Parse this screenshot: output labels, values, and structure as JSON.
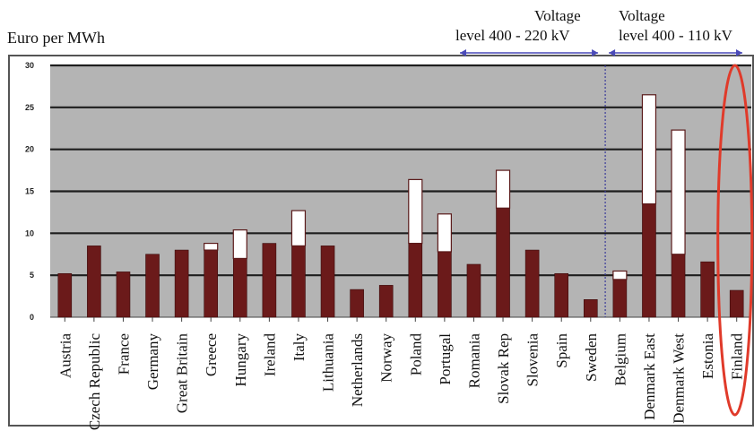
{
  "chart_data": {
    "type": "bar",
    "ylabel": "Euro per MWh",
    "ylim": [
      0,
      30
    ],
    "yticks": [
      "0",
      "5",
      "10",
      "15",
      "20",
      "25",
      "30"
    ],
    "grid": true,
    "categories": [
      "Austria",
      "Czech Republic",
      "France",
      "Germany",
      "Great Britain",
      "Greece",
      "Hungary",
      "Ireland",
      "Italy",
      "Lithuania",
      "Netherlands",
      "Norway",
      "Poland",
      "Portugal",
      "Romania",
      "Slovak Rep",
      "Slovenia",
      "Spain",
      "Sweden",
      "Belgium",
      "Denmark East",
      "Denmark West",
      "Estonia",
      "Finland"
    ],
    "series": [
      {
        "values": [
          5.2,
          8.5,
          5.4,
          7.5,
          8.0,
          8.0,
          7.0,
          8.8,
          8.5,
          8.5,
          3.3,
          3.8,
          8.8,
          7.8,
          6.3,
          13.0,
          8.0,
          5.2,
          2.1,
          4.5,
          13.5,
          7.5,
          6.6,
          3.2
        ],
        "color": "#6b1a1a"
      },
      {
        "values": [
          0,
          0,
          0,
          0,
          0,
          0.8,
          3.4,
          0,
          4.2,
          0,
          0,
          0,
          7.6,
          4.5,
          0,
          4.5,
          0,
          0,
          0,
          1.0,
          13.0,
          14.8,
          0,
          0
        ],
        "color": "#ffffff"
      }
    ],
    "groups": [
      {
        "title_line1": "Voltage",
        "title_line2": "level 400 - 220 kV",
        "from": "Austria",
        "to": "Sweden"
      },
      {
        "title_line1": "Voltage",
        "title_line2": "level 400 - 110 kV",
        "from": "Belgium",
        "to": "Finland"
      }
    ],
    "highlight": {
      "category": "Finland",
      "shape": "ellipse",
      "color": "#e03a2a"
    },
    "colors": {
      "plot_bg": "#b4b4b4",
      "gridline": "#1e1e1e",
      "arrow": "#4a4ab8",
      "divider": "#3a3a9a"
    }
  }
}
